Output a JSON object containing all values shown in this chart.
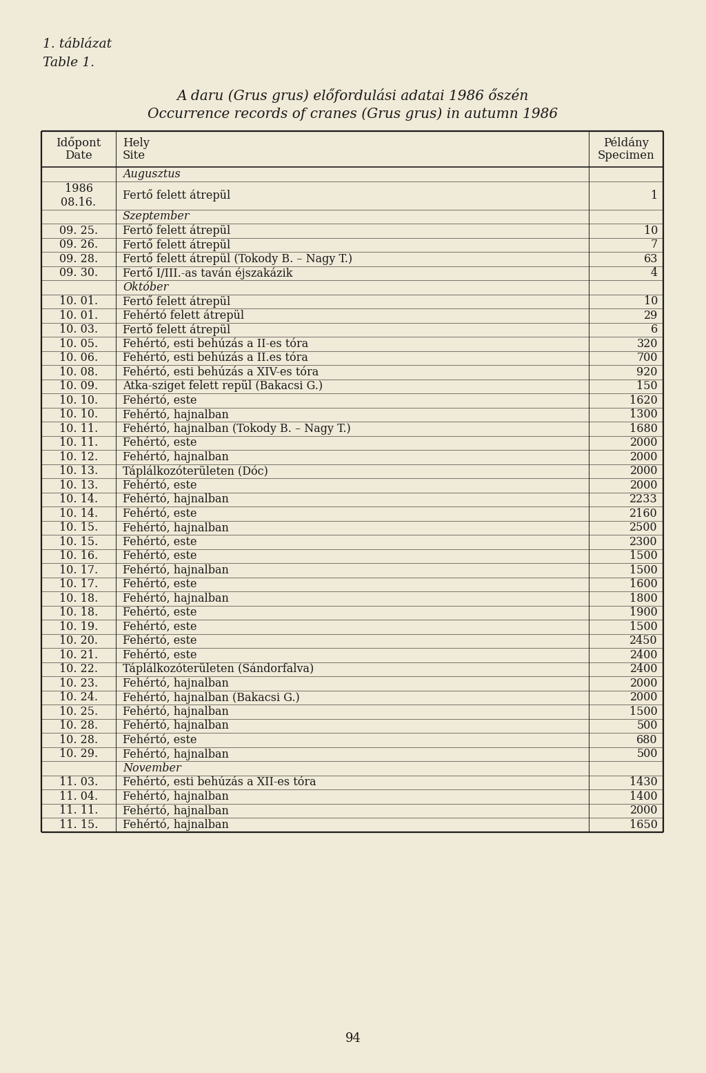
{
  "page_label_1": "1. táblázat",
  "page_label_2": "Table 1.",
  "title_line1": "A daru (Grus grus) előfordulási adatai 1986 őszén",
  "title_line2": "Occurrence records of cranes (Grus grus) in autumn 1986",
  "rows": [
    {
      "type": "header",
      "date": "Időpont\nDate",
      "site": "Hely\nSite",
      "spec": "Példány\nSpecimen"
    },
    {
      "type": "section",
      "label": "Augusztus"
    },
    {
      "type": "data",
      "date": "1986\n08.16.",
      "site": "Fertő felett átrepül",
      "spec": "1"
    },
    {
      "type": "section",
      "label": "Szeptember"
    },
    {
      "type": "data",
      "date": "09. 25.",
      "site": "Fertő felett átrepül",
      "spec": "10"
    },
    {
      "type": "data",
      "date": "09. 26.",
      "site": "Fertő felett átrepül",
      "spec": "7"
    },
    {
      "type": "data",
      "date": "09. 28.",
      "site": "Fertő felett átrepül (Tokody B. – Nagy T.)",
      "spec": "63"
    },
    {
      "type": "data",
      "date": "09. 30.",
      "site": "Fertő I/III.-as taván éjszakázik",
      "spec": "4"
    },
    {
      "type": "section",
      "label": "Október"
    },
    {
      "type": "data",
      "date": "10. 01.",
      "site": "Fertő felett átrepül",
      "spec": "10"
    },
    {
      "type": "data",
      "date": "10. 01.",
      "site": "Fehértó felett átrepül",
      "spec": "29"
    },
    {
      "type": "data",
      "date": "10. 03.",
      "site": "Fertő felett átrepül",
      "spec": "6"
    },
    {
      "type": "data",
      "date": "10. 05.",
      "site": "Fehértó, esti behúzás a II-es tóra",
      "spec": "320"
    },
    {
      "type": "data",
      "date": "10. 06.",
      "site": "Fehértó, esti behúzás a II.es tóra",
      "spec": "700"
    },
    {
      "type": "data",
      "date": "10. 08.",
      "site": "Fehértó, esti behúzás a XIV-es tóra",
      "spec": "920"
    },
    {
      "type": "data",
      "date": "10. 09.",
      "site": "Atka-sziget felett repül (Bakacsi G.)",
      "spec": "150"
    },
    {
      "type": "data",
      "date": "10. 10.",
      "site": "Fehértó, este",
      "spec": "1620"
    },
    {
      "type": "data",
      "date": "10. 10.",
      "site": "Fehértó, hajnalban",
      "spec": "1300"
    },
    {
      "type": "data",
      "date": "10. 11.",
      "site": "Fehértó, hajnalban (Tokody B. – Nagy T.)",
      "spec": "1680"
    },
    {
      "type": "data",
      "date": "10. 11.",
      "site": "Fehértó, este",
      "spec": "2000"
    },
    {
      "type": "data",
      "date": "10. 12.",
      "site": "Fehértó, hajnalban",
      "spec": "2000"
    },
    {
      "type": "data",
      "date": "10. 13.",
      "site": "Táplálkozóterületen (Dóc)",
      "spec": "2000"
    },
    {
      "type": "data",
      "date": "10. 13.",
      "site": "Fehértó, este",
      "spec": "2000"
    },
    {
      "type": "data",
      "date": "10. 14.",
      "site": "Fehértó, hajnalban",
      "spec": "2233"
    },
    {
      "type": "data",
      "date": "10. 14.",
      "site": "Fehértó, este",
      "spec": "2160"
    },
    {
      "type": "data",
      "date": "10. 15.",
      "site": "Fehértó, hajnalban",
      "spec": "2500"
    },
    {
      "type": "data",
      "date": "10. 15.",
      "site": "Fehértó, este",
      "spec": "2300"
    },
    {
      "type": "data",
      "date": "10. 16.",
      "site": "Fehértó, este",
      "spec": "1500"
    },
    {
      "type": "data",
      "date": "10. 17.",
      "site": "Fehértó, hajnalban",
      "spec": "1500"
    },
    {
      "type": "data",
      "date": "10. 17.",
      "site": "Fehértó, este",
      "spec": "1600"
    },
    {
      "type": "data",
      "date": "10. 18.",
      "site": "Fehértó, hajnalban",
      "spec": "1800"
    },
    {
      "type": "data",
      "date": "10. 18.",
      "site": "Fehértó, este",
      "spec": "1900"
    },
    {
      "type": "data",
      "date": "10. 19.",
      "site": "Fehértó, este",
      "spec": "1500"
    },
    {
      "type": "data",
      "date": "10. 20.",
      "site": "Fehértó, este",
      "spec": "2450"
    },
    {
      "type": "data",
      "date": "10. 21.",
      "site": "Fehértó, este",
      "spec": "2400"
    },
    {
      "type": "data",
      "date": "10. 22.",
      "site": "Táplálkozóterületen (Sándorfalva)",
      "spec": "2400"
    },
    {
      "type": "data",
      "date": "10. 23.",
      "site": "Fehértó, hajnalban",
      "spec": "2000"
    },
    {
      "type": "data",
      "date": "10. 24.",
      "site": "Fehértó, hajnalban (Bakacsi G.)",
      "spec": "2000"
    },
    {
      "type": "data",
      "date": "10. 25.",
      "site": "Fehértó, hajnalban",
      "spec": "1500"
    },
    {
      "type": "data",
      "date": "10. 28.",
      "site": "Fehértó, hajnalban",
      "spec": "500"
    },
    {
      "type": "data",
      "date": "10. 28.",
      "site": "Fehértó, este",
      "spec": "680"
    },
    {
      "type": "data",
      "date": "10. 29.",
      "site": "Fehértó, hajnalban",
      "spec": "500"
    },
    {
      "type": "section",
      "label": "November"
    },
    {
      "type": "data",
      "date": "11. 03.",
      "site": "Fehértó, esti behúzás a XII-es tóra",
      "spec": "1430"
    },
    {
      "type": "data",
      "date": "11. 04.",
      "site": "Fehértó, hajnalban",
      "spec": "1400"
    },
    {
      "type": "data",
      "date": "11. 11.",
      "site": "Fehértó, hajnalban",
      "spec": "2000"
    },
    {
      "type": "data",
      "date": "11. 15.",
      "site": "Fehértó, hajnalban",
      "spec": "1650"
    }
  ],
  "bg_color": "#f0ead8",
  "page_number": "94",
  "border_color": "#1a1a1a",
  "text_color": "#1a1a1a"
}
